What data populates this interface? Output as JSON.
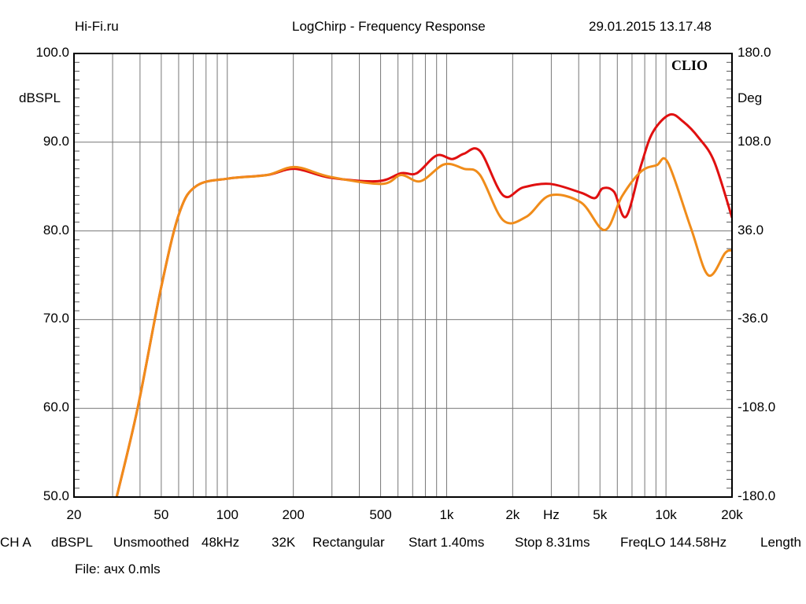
{
  "header": {
    "left": "Hi-Fi.ru",
    "center": "LogChirp - Frequency Response",
    "right": "29.01.2015 13.17.48"
  },
  "logo": "CLIO",
  "footer": {
    "params": [
      "CH A",
      "dBSPL",
      "Unsmoothed",
      "48kHz",
      "32K",
      "Rectangular",
      "Start 1.40ms",
      "Stop 8.31ms",
      "FreqLO 144.58Hz",
      "Length"
    ],
    "file": "File: ачх 0.mls"
  },
  "chart_data": {
    "type": "line",
    "title": "LogChirp - Frequency Response",
    "xlabel": "Hz",
    "ylabel": "dBSPL",
    "ylabel_right": "Deg",
    "xscale": "log",
    "xlim": [
      20,
      20000
    ],
    "ylim": [
      50,
      100
    ],
    "ylim_right": [
      -180,
      180
    ],
    "grid": true,
    "x_ticks": [
      {
        "v": 20,
        "label": "20"
      },
      {
        "v": 50,
        "label": "50"
      },
      {
        "v": 100,
        "label": "100"
      },
      {
        "v": 200,
        "label": "200"
      },
      {
        "v": 500,
        "label": "500"
      },
      {
        "v": 1000,
        "label": "1k"
      },
      {
        "v": 2000,
        "label": "2k"
      },
      {
        "v": 3000,
        "label": "Hz"
      },
      {
        "v": 5000,
        "label": "5k"
      },
      {
        "v": 10000,
        "label": "10k"
      },
      {
        "v": 20000,
        "label": "20k"
      }
    ],
    "y_ticks": [
      {
        "v": 100,
        "label": "100.0"
      },
      {
        "v": 90,
        "label": "90.0"
      },
      {
        "v": 80,
        "label": "80.0"
      },
      {
        "v": 70,
        "label": "70.0"
      },
      {
        "v": 60,
        "label": "60.0"
      },
      {
        "v": 50,
        "label": "50.0"
      }
    ],
    "y_ticks_right": [
      {
        "v": 100,
        "label": "180.0"
      },
      {
        "v": 90,
        "label": "108.0"
      },
      {
        "v": 80,
        "label": "36.0"
      },
      {
        "v": 70,
        "label": "-36.0"
      },
      {
        "v": 60,
        "label": "-108.0"
      },
      {
        "v": 50,
        "label": "-180.0"
      }
    ],
    "series": [
      {
        "name": "red",
        "color": "#e01010",
        "points": [
          [
            31.3,
            50
          ],
          [
            39,
            60
          ],
          [
            50,
            73.7
          ],
          [
            60.6,
            82.1
          ],
          [
            72.6,
            85.1
          ],
          [
            101,
            85.9
          ],
          [
            152,
            86.3
          ],
          [
            203,
            87
          ],
          [
            294,
            86
          ],
          [
            485,
            85.6
          ],
          [
            620,
            86.5
          ],
          [
            730,
            86.5
          ],
          [
            900,
            88.5
          ],
          [
            1060,
            88.1
          ],
          [
            1200,
            88.7
          ],
          [
            1420,
            89
          ],
          [
            1810,
            84
          ],
          [
            2230,
            84.9
          ],
          [
            2960,
            85.3
          ],
          [
            4100,
            84.3
          ],
          [
            4740,
            83.7
          ],
          [
            5150,
            84.8
          ],
          [
            5800,
            84.4
          ],
          [
            6570,
            81.6
          ],
          [
            7700,
            87.4
          ],
          [
            8700,
            91.1
          ],
          [
            10400,
            93.1
          ],
          [
            12000,
            92.3
          ],
          [
            14100,
            90.5
          ],
          [
            16600,
            87.8
          ],
          [
            20000,
            81.5
          ]
        ]
      },
      {
        "name": "orange",
        "color": "#f08c1a",
        "points": [
          [
            31.3,
            50
          ],
          [
            39,
            60
          ],
          [
            50,
            73.7
          ],
          [
            60.6,
            82.1
          ],
          [
            72.6,
            85.1
          ],
          [
            101,
            85.9
          ],
          [
            152,
            86.3
          ],
          [
            203,
            87.2
          ],
          [
            294,
            86.1
          ],
          [
            505,
            85.3
          ],
          [
            620,
            86.3
          ],
          [
            760,
            85.6
          ],
          [
            975,
            87.5
          ],
          [
            1200,
            87
          ],
          [
            1420,
            86.3
          ],
          [
            1810,
            81.2
          ],
          [
            2310,
            81.6
          ],
          [
            2960,
            84
          ],
          [
            4100,
            83.2
          ],
          [
            5260,
            80.1
          ],
          [
            6300,
            83.9
          ],
          [
            7700,
            86.7
          ],
          [
            9060,
            87.4
          ],
          [
            10200,
            87.7
          ],
          [
            13000,
            80.3
          ],
          [
            15600,
            75
          ],
          [
            18600,
            77.5
          ],
          [
            20000,
            77.8
          ]
        ]
      }
    ]
  }
}
